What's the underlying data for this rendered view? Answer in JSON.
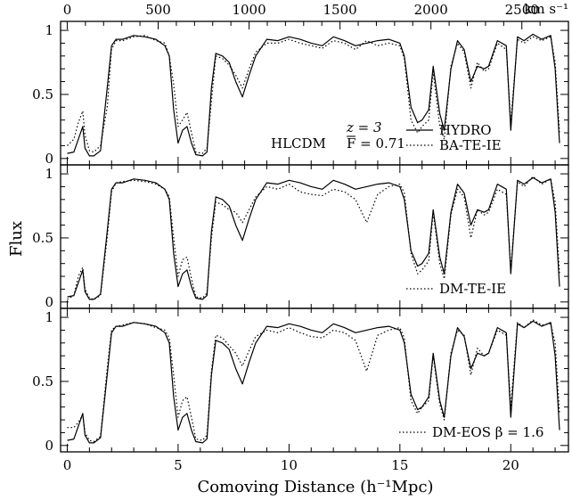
{
  "chart_data": {
    "type": "line",
    "xlabel": "Comoving Distance (h⁻¹Mpc)",
    "ylabel": "Flux",
    "top_axis_unit": "km s⁻¹",
    "top_ticks": [
      "0",
      "500",
      "1000",
      "1500",
      "2000",
      "2500"
    ],
    "top_tick_values": [
      0,
      500,
      1000,
      1500,
      2000,
      2500
    ],
    "xlim": [
      -0.3,
      22.6
    ],
    "ylim": [
      -0.05,
      1.07
    ],
    "x_ticks": [
      "0",
      "5",
      "10",
      "15",
      "20"
    ],
    "x_tick_values": [
      0,
      5,
      10,
      15,
      20
    ],
    "y_ticks": [
      "0",
      "0.5",
      "1"
    ],
    "y_tick_values": [
      0,
      0.5,
      1
    ],
    "x": [
      0,
      0.3,
      0.5,
      0.7,
      0.8,
      1.0,
      1.2,
      1.5,
      1.8,
      2.0,
      2.2,
      2.5,
      3.0,
      3.5,
      4.0,
      4.4,
      4.6,
      4.8,
      5.0,
      5.2,
      5.4,
      5.6,
      5.8,
      6.1,
      6.3,
      6.5,
      6.7,
      7.0,
      7.3,
      7.6,
      7.9,
      8.2,
      8.5,
      9.0,
      9.5,
      10.0,
      10.5,
      11.0,
      11.5,
      12.0,
      12.5,
      13.0,
      13.5,
      14.0,
      14.5,
      15.0,
      15.2,
      15.5,
      15.8,
      16.0,
      16.3,
      16.5,
      16.8,
      17.0,
      17.3,
      17.6,
      17.9,
      18.2,
      18.5,
      18.8,
      19.0,
      19.4,
      19.8,
      20.0,
      20.3,
      20.6,
      21.0,
      21.4,
      21.8,
      22.0,
      22.2
    ],
    "panels": [
      {
        "annotations": [
          "HLCDM",
          "z = 3",
          "F̄ = 0.71"
        ],
        "series": [
          {
            "name": "HYDRO",
            "style": "solid",
            "values": [
              0.04,
              0.05,
              0.15,
              0.25,
              0.08,
              0.02,
              0.02,
              0.06,
              0.55,
              0.88,
              0.93,
              0.93,
              0.96,
              0.95,
              0.93,
              0.88,
              0.8,
              0.38,
              0.12,
              0.22,
              0.25,
              0.12,
              0.03,
              0.02,
              0.05,
              0.55,
              0.82,
              0.8,
              0.75,
              0.6,
              0.48,
              0.65,
              0.8,
              0.93,
              0.92,
              0.95,
              0.93,
              0.9,
              0.88,
              0.95,
              0.92,
              0.88,
              0.9,
              0.92,
              0.93,
              0.9,
              0.8,
              0.4,
              0.28,
              0.3,
              0.38,
              0.72,
              0.35,
              0.22,
              0.7,
              0.92,
              0.85,
              0.6,
              0.72,
              0.7,
              0.72,
              0.92,
              0.88,
              0.22,
              0.95,
              0.92,
              0.97,
              0.93,
              0.96,
              0.7,
              0.12
            ]
          },
          {
            "name": "BA-TE-IE",
            "style": "dotted",
            "values": [
              0.1,
              0.15,
              0.28,
              0.37,
              0.18,
              0.06,
              0.05,
              0.1,
              0.4,
              0.85,
              0.92,
              0.92,
              0.95,
              0.96,
              0.92,
              0.9,
              0.8,
              0.58,
              0.25,
              0.3,
              0.36,
              0.2,
              0.05,
              0.04,
              0.08,
              0.45,
              0.8,
              0.78,
              0.73,
              0.65,
              0.55,
              0.7,
              0.83,
              0.9,
              0.9,
              0.93,
              0.9,
              0.88,
              0.86,
              0.92,
              0.9,
              0.85,
              0.92,
              0.88,
              0.9,
              0.88,
              0.78,
              0.3,
              0.2,
              0.25,
              0.3,
              0.68,
              0.25,
              0.15,
              0.72,
              0.9,
              0.83,
              0.55,
              0.75,
              0.68,
              0.7,
              0.9,
              0.85,
              0.28,
              0.93,
              0.9,
              0.95,
              0.92,
              0.95,
              0.75,
              0.2
            ]
          }
        ]
      },
      {
        "annotations": [],
        "series": [
          {
            "name": "HYDRO",
            "style": "solid",
            "values": [
              0.04,
              0.05,
              0.15,
              0.25,
              0.08,
              0.02,
              0.02,
              0.06,
              0.55,
              0.88,
              0.93,
              0.93,
              0.96,
              0.95,
              0.93,
              0.88,
              0.8,
              0.38,
              0.12,
              0.22,
              0.25,
              0.12,
              0.03,
              0.02,
              0.05,
              0.55,
              0.82,
              0.8,
              0.75,
              0.6,
              0.48,
              0.65,
              0.8,
              0.93,
              0.92,
              0.95,
              0.93,
              0.9,
              0.88,
              0.95,
              0.92,
              0.88,
              0.9,
              0.92,
              0.93,
              0.9,
              0.8,
              0.4,
              0.28,
              0.3,
              0.38,
              0.72,
              0.35,
              0.22,
              0.7,
              0.92,
              0.85,
              0.6,
              0.72,
              0.7,
              0.72,
              0.92,
              0.88,
              0.22,
              0.95,
              0.92,
              0.97,
              0.93,
              0.96,
              0.7,
              0.12
            ]
          },
          {
            "name": "DM-TE-IE",
            "style": "dotted",
            "values": [
              0.02,
              0.05,
              0.2,
              0.27,
              0.1,
              0.03,
              0.02,
              0.05,
              0.5,
              0.86,
              0.93,
              0.94,
              0.95,
              0.94,
              0.92,
              0.88,
              0.82,
              0.5,
              0.2,
              0.33,
              0.35,
              0.18,
              0.04,
              0.03,
              0.07,
              0.5,
              0.78,
              0.76,
              0.72,
              0.7,
              0.62,
              0.72,
              0.82,
              0.9,
              0.88,
              0.92,
              0.86,
              0.84,
              0.83,
              0.88,
              0.86,
              0.8,
              0.62,
              0.84,
              0.9,
              0.92,
              0.85,
              0.38,
              0.22,
              0.25,
              0.32,
              0.7,
              0.3,
              0.18,
              0.68,
              0.88,
              0.82,
              0.5,
              0.72,
              0.68,
              0.7,
              0.88,
              0.84,
              0.25,
              0.94,
              0.9,
              0.98,
              0.92,
              0.96,
              0.78,
              0.22
            ]
          }
        ]
      },
      {
        "annotations": [],
        "series": [
          {
            "name": "HYDRO",
            "style": "solid",
            "values": [
              0.04,
              0.05,
              0.15,
              0.25,
              0.08,
              0.02,
              0.02,
              0.06,
              0.55,
              0.88,
              0.93,
              0.93,
              0.96,
              0.95,
              0.93,
              0.88,
              0.8,
              0.38,
              0.12,
              0.22,
              0.25,
              0.12,
              0.03,
              0.02,
              0.05,
              0.55,
              0.82,
              0.8,
              0.75,
              0.6,
              0.48,
              0.65,
              0.8,
              0.93,
              0.92,
              0.95,
              0.93,
              0.9,
              0.88,
              0.95,
              0.92,
              0.88,
              0.9,
              0.92,
              0.93,
              0.9,
              0.8,
              0.4,
              0.28,
              0.3,
              0.38,
              0.72,
              0.35,
              0.22,
              0.7,
              0.92,
              0.85,
              0.6,
              0.72,
              0.7,
              0.72,
              0.92,
              0.88,
              0.22,
              0.95,
              0.92,
              0.97,
              0.93,
              0.96,
              0.7,
              0.12
            ]
          },
          {
            "name": "DM-EOS β = 1.6",
            "style": "dotted",
            "values": [
              0.14,
              0.14,
              0.18,
              0.24,
              0.1,
              0.04,
              0.03,
              0.07,
              0.6,
              0.9,
              0.93,
              0.94,
              0.96,
              0.95,
              0.92,
              0.9,
              0.84,
              0.55,
              0.22,
              0.35,
              0.38,
              0.22,
              0.05,
              0.04,
              0.08,
              0.58,
              0.86,
              0.84,
              0.78,
              0.72,
              0.62,
              0.74,
              0.85,
              0.9,
              0.88,
              0.92,
              0.88,
              0.85,
              0.84,
              0.9,
              0.88,
              0.82,
              0.58,
              0.86,
              0.9,
              0.92,
              0.84,
              0.35,
              0.25,
              0.3,
              0.35,
              0.7,
              0.32,
              0.2,
              0.72,
              0.9,
              0.86,
              0.55,
              0.76,
              0.7,
              0.72,
              0.9,
              0.86,
              0.3,
              0.96,
              0.92,
              0.98,
              0.94,
              0.95,
              0.8,
              0.25
            ]
          }
        ]
      }
    ]
  }
}
